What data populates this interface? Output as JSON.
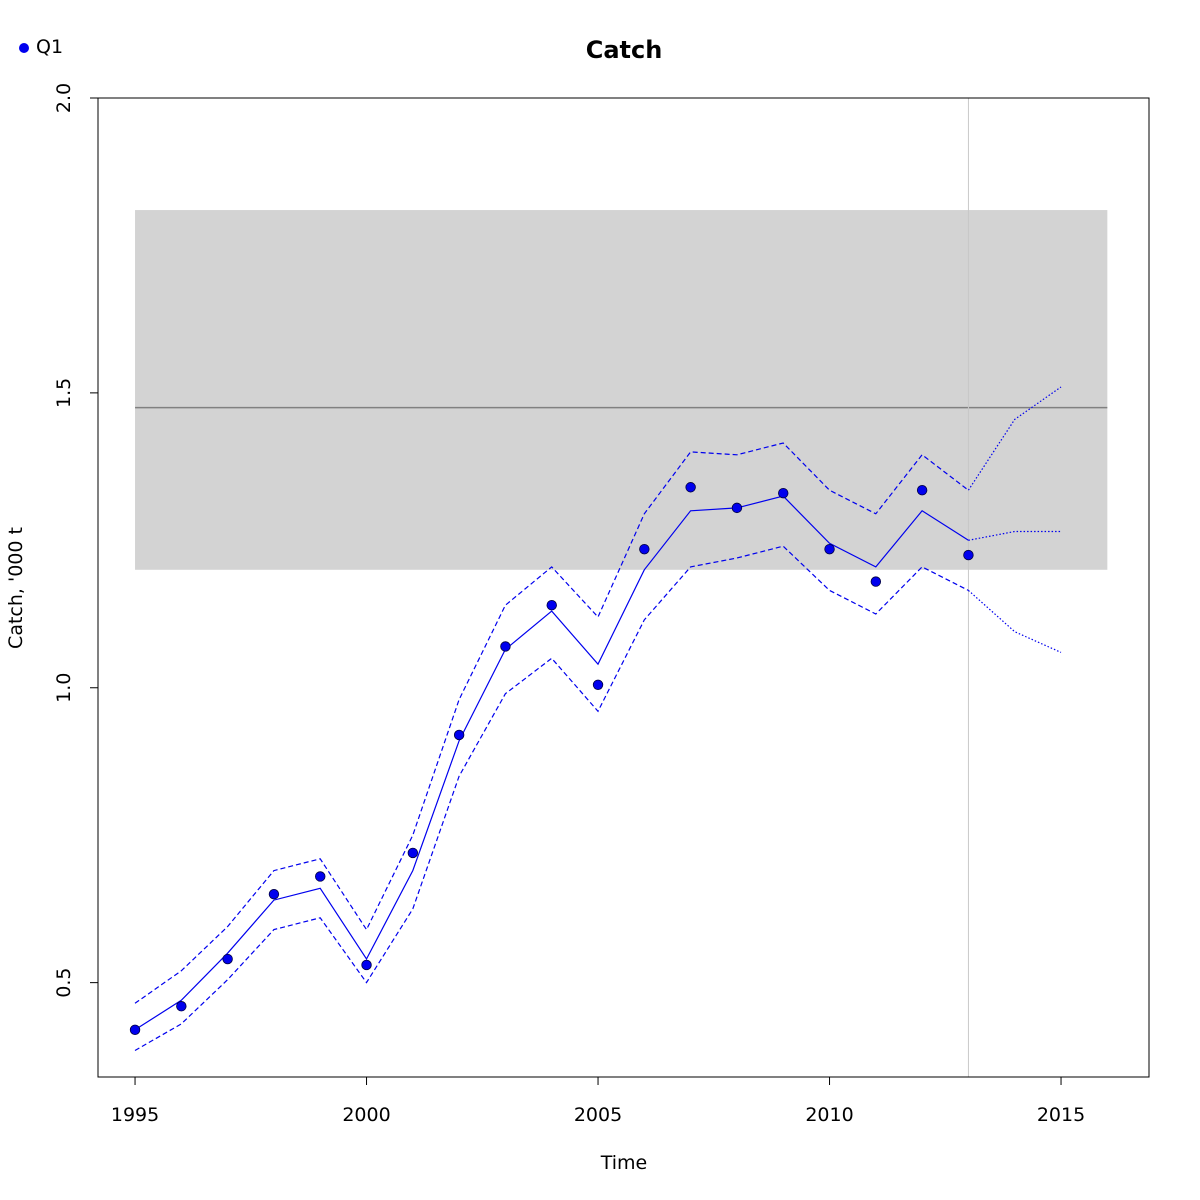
{
  "chart_data": {
    "type": "line",
    "title": "Catch",
    "xlabel": "Time",
    "ylabel": "Catch, '000 t",
    "xlim": [
      1994.2,
      2016.9
    ],
    "ylim": [
      0.34,
      2.0
    ],
    "x_ticks": [
      1995,
      2000,
      2005,
      2010,
      2015
    ],
    "y_ticks": [
      0.5,
      1.0,
      1.5,
      2.0
    ],
    "x_tick_labels": [
      "1995",
      "2000",
      "2005",
      "2010",
      "2015"
    ],
    "y_tick_labels": [
      "0.5",
      "1.0",
      "1.5",
      "2.0"
    ],
    "legend": {
      "position": "top-left",
      "entries": [
        {
          "label": "Q1",
          "color": "#0000ee"
        }
      ]
    },
    "reference_band": {
      "x_range": [
        1995,
        2016
      ],
      "y_range": [
        1.2,
        1.81
      ],
      "color": "#d3d3d3"
    },
    "reference_line": {
      "y": 1.475,
      "x_range": [
        1995,
        2016
      ],
      "color": "#808080"
    },
    "vertical_line": {
      "x": 2013,
      "color": "#c8c8c8"
    },
    "colors": {
      "series": "#0000ee",
      "box": "#000000"
    },
    "series": [
      {
        "name": "Q1",
        "style": "points",
        "x": [
          1995,
          1996,
          1997,
          1998,
          1999,
          2000,
          2001,
          2002,
          2003,
          2004,
          2005,
          2006,
          2007,
          2008,
          2009,
          2010,
          2011,
          2012,
          2013
        ],
        "values": [
          0.42,
          0.46,
          0.54,
          0.65,
          0.68,
          0.53,
          0.72,
          0.92,
          1.07,
          1.14,
          1.005,
          1.235,
          1.34,
          1.305,
          1.33,
          1.235,
          1.18,
          1.335,
          1.225
        ]
      },
      {
        "style": "solid",
        "x": [
          1995,
          1996,
          1997,
          1998,
          1999,
          2000,
          2001,
          2002,
          2003,
          2004,
          2005,
          2006,
          2007,
          2008,
          2009,
          2010,
          2011,
          2012,
          2013
        ],
        "values": [
          0.42,
          0.47,
          0.55,
          0.64,
          0.66,
          0.54,
          0.69,
          0.91,
          1.065,
          1.13,
          1.04,
          1.2,
          1.3,
          1.305,
          1.325,
          1.245,
          1.205,
          1.3,
          1.25
        ]
      },
      {
        "style": "dashed",
        "x": [
          1995,
          1996,
          1997,
          1998,
          1999,
          2000,
          2001,
          2002,
          2003,
          2004,
          2005,
          2006,
          2007,
          2008,
          2009,
          2010,
          2011,
          2012,
          2013
        ],
        "values": [
          0.465,
          0.52,
          0.595,
          0.69,
          0.71,
          0.59,
          0.75,
          0.98,
          1.14,
          1.205,
          1.12,
          1.295,
          1.4,
          1.395,
          1.415,
          1.335,
          1.295,
          1.395,
          1.335
        ]
      },
      {
        "style": "dashed",
        "x": [
          1995,
          1996,
          1997,
          1998,
          1999,
          2000,
          2001,
          2002,
          2003,
          2004,
          2005,
          2006,
          2007,
          2008,
          2009,
          2010,
          2011,
          2012,
          2013
        ],
        "values": [
          0.385,
          0.43,
          0.505,
          0.59,
          0.61,
          0.5,
          0.625,
          0.85,
          0.99,
          1.05,
          0.96,
          1.115,
          1.205,
          1.22,
          1.24,
          1.165,
          1.125,
          1.205,
          1.165
        ]
      },
      {
        "style": "dotted",
        "x": [
          2013,
          2014,
          2015
        ],
        "values": [
          1.25,
          1.265,
          1.265
        ]
      },
      {
        "style": "dotted",
        "x": [
          2013,
          2014,
          2015
        ],
        "values": [
          1.335,
          1.455,
          1.51
        ]
      },
      {
        "style": "dotted",
        "x": [
          2013,
          2014,
          2015
        ],
        "values": [
          1.165,
          1.095,
          1.06
        ]
      }
    ]
  }
}
